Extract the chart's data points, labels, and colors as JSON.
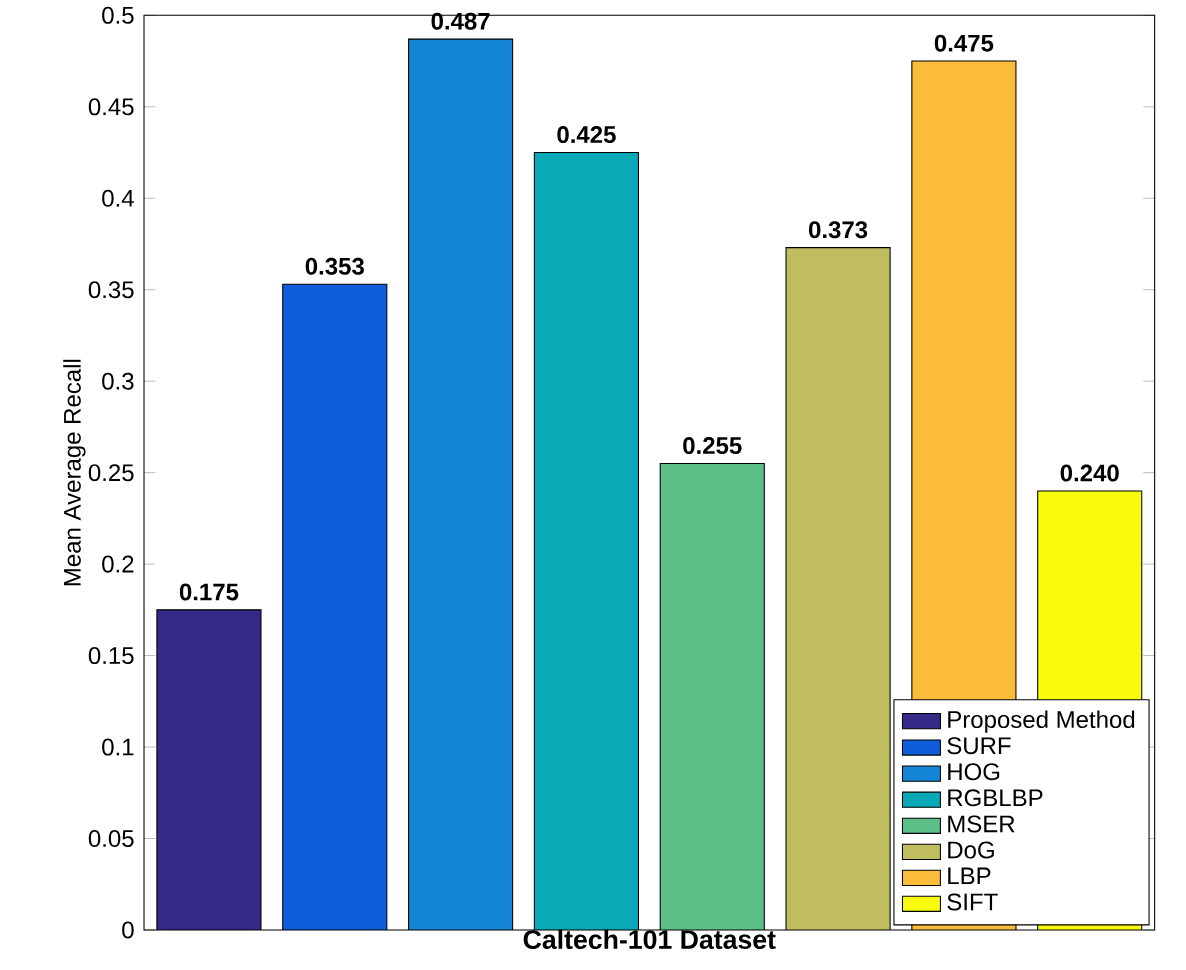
{
  "chart_data": {
    "type": "bar",
    "xlabel": "Caltech-101 Dataset",
    "ylabel": "Mean Average Recall",
    "categories": [
      null
    ],
    "series": [
      {
        "name": "Proposed Method",
        "color": "#352a87",
        "values": [
          0.175
        ],
        "value_labels": [
          "0.175"
        ]
      },
      {
        "name": "SURF",
        "color": "#0f5cdd",
        "values": [
          0.353
        ],
        "value_labels": [
          "0.353"
        ]
      },
      {
        "name": "HOG",
        "color": "#1485d4",
        "values": [
          0.487
        ],
        "value_labels": [
          "0.487"
        ]
      },
      {
        "name": "RGBLBP",
        "color": "#09a9b8",
        "values": [
          0.425
        ],
        "value_labels": [
          "0.425"
        ]
      },
      {
        "name": "MSER",
        "color": "#5cbf88",
        "values": [
          0.255
        ],
        "value_labels": [
          "0.255"
        ]
      },
      {
        "name": "DoG",
        "color": "#c0bc60",
        "values": [
          0.373
        ],
        "value_labels": [
          "0.373"
        ]
      },
      {
        "name": "LBP",
        "color": "#fbbc3c",
        "values": [
          0.475
        ],
        "value_labels": [
          "0.475"
        ]
      },
      {
        "name": "SIFT",
        "color": "#f9fb0e",
        "values": [
          0.24
        ],
        "value_labels": [
          "0.240"
        ]
      }
    ],
    "ylim": [
      0,
      0.5
    ],
    "yticks": [
      0,
      0.05,
      0.1,
      0.15,
      0.2,
      0.25,
      0.3,
      0.35,
      0.4,
      0.45,
      0.5
    ],
    "grid": false,
    "legend": "bottom right"
  }
}
